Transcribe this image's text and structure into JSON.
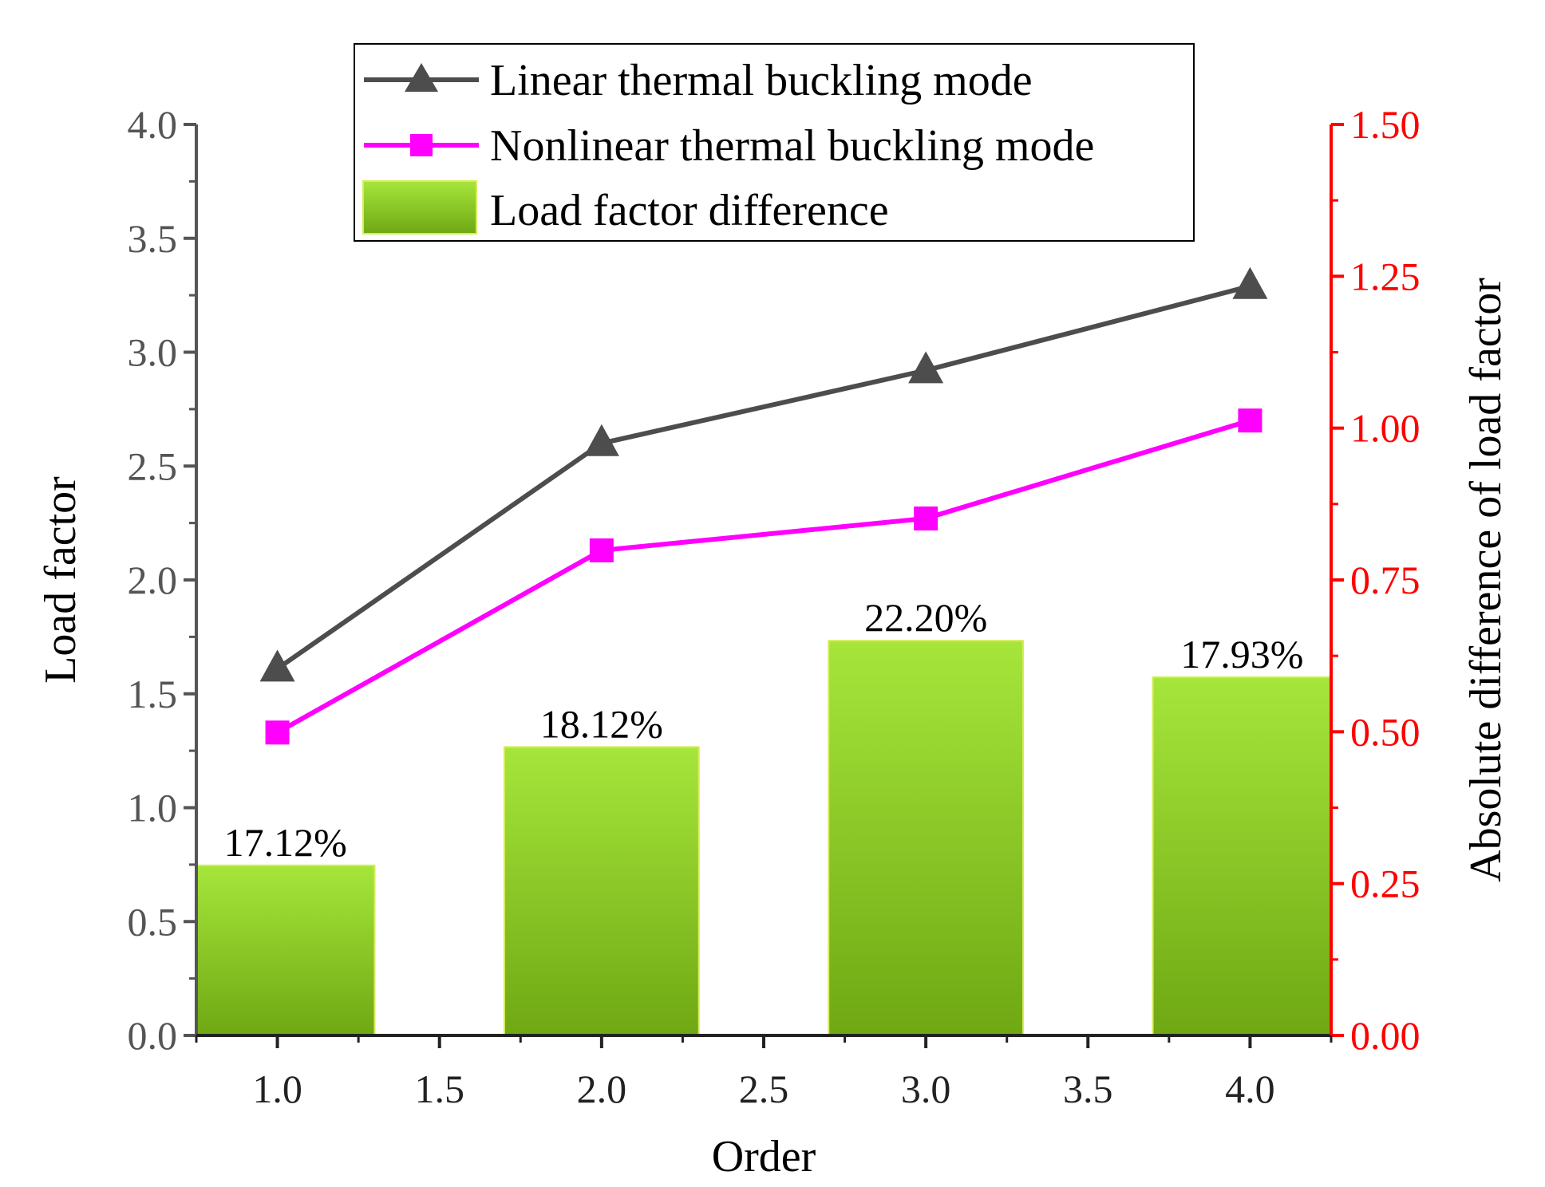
{
  "chart_data": {
    "type": "bar+line",
    "title": "",
    "xlabel": "Order",
    "ylabel": "Load factor",
    "y2label": "Absolute difference of load factor",
    "xlim": [
      0.75,
      4.25
    ],
    "ylim": [
      0,
      4.0
    ],
    "y2lim": [
      0,
      1.5
    ],
    "x_ticks": [
      "1.0",
      "1.5",
      "2.0",
      "2.5",
      "3.0",
      "3.5",
      "4.0"
    ],
    "y_ticks": [
      "0.0",
      "0.5",
      "1.0",
      "1.5",
      "2.0",
      "2.5",
      "3.0",
      "3.5",
      "4.0"
    ],
    "y2_ticks": [
      "0.00",
      "0.25",
      "0.50",
      "0.75",
      "1.00",
      "1.25",
      "1.50"
    ],
    "x": [
      1,
      2,
      3,
      4
    ],
    "series": [
      {
        "name": "Linear thermal buckling mode",
        "type": "line",
        "axis": "left",
        "marker": "triangle",
        "color": "#4d4d4d",
        "values": [
          1.61,
          2.6,
          2.92,
          3.29
        ]
      },
      {
        "name": "Nonlinear thermal buckling mode",
        "type": "line",
        "axis": "left",
        "marker": "square",
        "color": "#ff00ff",
        "values": [
          1.33,
          2.13,
          2.27,
          2.7
        ]
      },
      {
        "name": "Load factor difference",
        "type": "bar",
        "axis": "right",
        "color_top": "#a6e63b",
        "color_bottom": "#6fa813",
        "values": [
          0.28,
          0.475,
          0.65,
          0.59
        ],
        "labels": [
          "17.12%",
          "18.12%",
          "22.20%",
          "17.93%"
        ]
      }
    ],
    "legend_position": "top-center",
    "grid": false
  },
  "colors": {
    "left_axis": "#555555",
    "right_axis": "#ff0000",
    "bottom_axis": "#222222"
  }
}
